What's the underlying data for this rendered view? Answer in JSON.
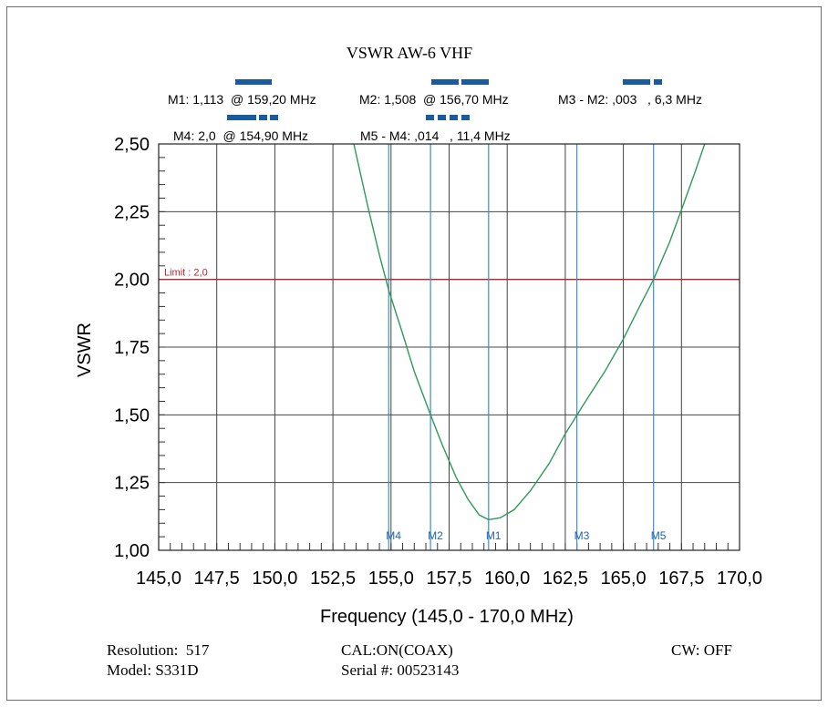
{
  "chart_data": {
    "type": "line",
    "title": "VSWR AW-6 VHF",
    "xlabel": "Frequency (145,0 - 170,0 MHz)",
    "ylabel": "VSWR",
    "xlim": [
      145.0,
      170.0
    ],
    "ylim": [
      1.0,
      2.5
    ],
    "x_ticks": [
      145.0,
      147.5,
      150.0,
      152.5,
      155.0,
      157.5,
      160.0,
      162.5,
      165.0,
      167.5,
      170.0
    ],
    "x_tick_labels": [
      "145,0",
      "147,5",
      "150,0",
      "152,5",
      "155,0",
      "157,5",
      "160,0",
      "162,5",
      "165,0",
      "167,5",
      "170,0"
    ],
    "y_ticks": [
      1.0,
      1.25,
      1.5,
      1.75,
      2.0,
      2.25,
      2.5
    ],
    "y_tick_labels": [
      "1,00",
      "1,25",
      "1,50",
      "1,75",
      "2,00",
      "2,25",
      "2,50"
    ],
    "grid": true,
    "colors": {
      "trace": "#2e9a55",
      "limit": "#b3272f",
      "marker": "#3a8fc8",
      "marker_label": "#1f63b0",
      "readout_bar": "#1a5a9e"
    },
    "series": [
      {
        "values": [
          {
            "x": 153.4,
            "y": 2.5
          },
          {
            "x": 154.0,
            "y": 2.27
          },
          {
            "x": 154.5,
            "y": 2.09
          },
          {
            "x": 154.9,
            "y": 1.96
          },
          {
            "x": 155.5,
            "y": 1.8
          },
          {
            "x": 156.0,
            "y": 1.66
          },
          {
            "x": 156.7,
            "y": 1.5
          },
          {
            "x": 157.2,
            "y": 1.39
          },
          {
            "x": 157.8,
            "y": 1.27
          },
          {
            "x": 158.3,
            "y": 1.19
          },
          {
            "x": 158.8,
            "y": 1.13
          },
          {
            "x": 159.2,
            "y": 1.113
          },
          {
            "x": 159.7,
            "y": 1.12
          },
          {
            "x": 160.3,
            "y": 1.15
          },
          {
            "x": 161.0,
            "y": 1.22
          },
          {
            "x": 161.8,
            "y": 1.32
          },
          {
            "x": 162.5,
            "y": 1.43
          },
          {
            "x": 163.3,
            "y": 1.54
          },
          {
            "x": 164.2,
            "y": 1.66
          },
          {
            "x": 165.0,
            "y": 1.78
          },
          {
            "x": 165.7,
            "y": 1.9
          },
          {
            "x": 166.3,
            "y": 2.0
          },
          {
            "x": 167.0,
            "y": 2.14
          },
          {
            "x": 167.6,
            "y": 2.28
          },
          {
            "x": 168.1,
            "y": 2.4
          },
          {
            "x": 168.5,
            "y": 2.5
          }
        ]
      }
    ],
    "limit_line": {
      "y": 2.0,
      "label": "Limit : 2,0"
    },
    "markers": [
      {
        "label": "M4",
        "x": 154.9
      },
      {
        "label": "M2",
        "x": 156.7
      },
      {
        "label": "M1",
        "x": 159.2
      },
      {
        "label": "M3",
        "x": 163.0
      },
      {
        "label": "M5",
        "x": 166.3
      }
    ],
    "marker_readouts": [
      "M1: 1,113  @ 159,20 MHz",
      "M2: 1,508  @ 156,70 MHz",
      "M3 - M2: ,003   , 6,3 MHz",
      "M4: 2,0  @ 154,90 MHz",
      "M5 - M4: ,014   , 11,4 MHz"
    ]
  },
  "footer": {
    "resolution": "Resolution:  517",
    "model": "Model: S331D",
    "cal": "CAL:ON(COAX)",
    "serial": "Serial #: 00523143",
    "cw": "CW: OFF"
  }
}
